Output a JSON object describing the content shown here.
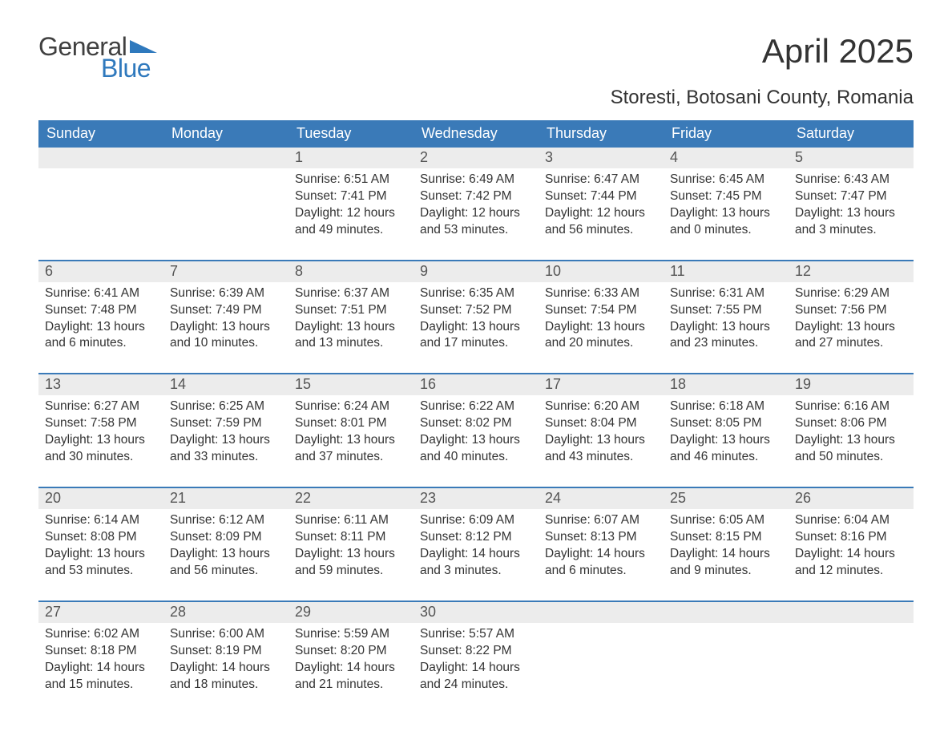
{
  "brand": {
    "general": "General",
    "blue": "Blue",
    "tri_color": "#2f79bd",
    "text_gray": "#404040"
  },
  "title": "April 2025",
  "location": "Storesti, Botosani County, Romania",
  "colors": {
    "header_bg": "#3a7ab8",
    "header_text": "#ffffff",
    "daynum_bg": "#ececec",
    "daynum_text": "#555555",
    "body_text": "#333333",
    "week_border": "#3a7ab8",
    "page_bg": "#ffffff"
  },
  "typography": {
    "title_fontsize": 42,
    "location_fontsize": 24,
    "header_fontsize": 18,
    "body_fontsize": 15.5
  },
  "weekdays": [
    "Sunday",
    "Monday",
    "Tuesday",
    "Wednesday",
    "Thursday",
    "Friday",
    "Saturday"
  ],
  "weeks": [
    [
      {
        "n": "",
        "sr": "",
        "ss": "",
        "dl": ""
      },
      {
        "n": "",
        "sr": "",
        "ss": "",
        "dl": ""
      },
      {
        "n": "1",
        "sr": "Sunrise: 6:51 AM",
        "ss": "Sunset: 7:41 PM",
        "dl": "Daylight: 12 hours and 49 minutes."
      },
      {
        "n": "2",
        "sr": "Sunrise: 6:49 AM",
        "ss": "Sunset: 7:42 PM",
        "dl": "Daylight: 12 hours and 53 minutes."
      },
      {
        "n": "3",
        "sr": "Sunrise: 6:47 AM",
        "ss": "Sunset: 7:44 PM",
        "dl": "Daylight: 12 hours and 56 minutes."
      },
      {
        "n": "4",
        "sr": "Sunrise: 6:45 AM",
        "ss": "Sunset: 7:45 PM",
        "dl": "Daylight: 13 hours and 0 minutes."
      },
      {
        "n": "5",
        "sr": "Sunrise: 6:43 AM",
        "ss": "Sunset: 7:47 PM",
        "dl": "Daylight: 13 hours and 3 minutes."
      }
    ],
    [
      {
        "n": "6",
        "sr": "Sunrise: 6:41 AM",
        "ss": "Sunset: 7:48 PM",
        "dl": "Daylight: 13 hours and 6 minutes."
      },
      {
        "n": "7",
        "sr": "Sunrise: 6:39 AM",
        "ss": "Sunset: 7:49 PM",
        "dl": "Daylight: 13 hours and 10 minutes."
      },
      {
        "n": "8",
        "sr": "Sunrise: 6:37 AM",
        "ss": "Sunset: 7:51 PM",
        "dl": "Daylight: 13 hours and 13 minutes."
      },
      {
        "n": "9",
        "sr": "Sunrise: 6:35 AM",
        "ss": "Sunset: 7:52 PM",
        "dl": "Daylight: 13 hours and 17 minutes."
      },
      {
        "n": "10",
        "sr": "Sunrise: 6:33 AM",
        "ss": "Sunset: 7:54 PM",
        "dl": "Daylight: 13 hours and 20 minutes."
      },
      {
        "n": "11",
        "sr": "Sunrise: 6:31 AM",
        "ss": "Sunset: 7:55 PM",
        "dl": "Daylight: 13 hours and 23 minutes."
      },
      {
        "n": "12",
        "sr": "Sunrise: 6:29 AM",
        "ss": "Sunset: 7:56 PM",
        "dl": "Daylight: 13 hours and 27 minutes."
      }
    ],
    [
      {
        "n": "13",
        "sr": "Sunrise: 6:27 AM",
        "ss": "Sunset: 7:58 PM",
        "dl": "Daylight: 13 hours and 30 minutes."
      },
      {
        "n": "14",
        "sr": "Sunrise: 6:25 AM",
        "ss": "Sunset: 7:59 PM",
        "dl": "Daylight: 13 hours and 33 minutes."
      },
      {
        "n": "15",
        "sr": "Sunrise: 6:24 AM",
        "ss": "Sunset: 8:01 PM",
        "dl": "Daylight: 13 hours and 37 minutes."
      },
      {
        "n": "16",
        "sr": "Sunrise: 6:22 AM",
        "ss": "Sunset: 8:02 PM",
        "dl": "Daylight: 13 hours and 40 minutes."
      },
      {
        "n": "17",
        "sr": "Sunrise: 6:20 AM",
        "ss": "Sunset: 8:04 PM",
        "dl": "Daylight: 13 hours and 43 minutes."
      },
      {
        "n": "18",
        "sr": "Sunrise: 6:18 AM",
        "ss": "Sunset: 8:05 PM",
        "dl": "Daylight: 13 hours and 46 minutes."
      },
      {
        "n": "19",
        "sr": "Sunrise: 6:16 AM",
        "ss": "Sunset: 8:06 PM",
        "dl": "Daylight: 13 hours and 50 minutes."
      }
    ],
    [
      {
        "n": "20",
        "sr": "Sunrise: 6:14 AM",
        "ss": "Sunset: 8:08 PM",
        "dl": "Daylight: 13 hours and 53 minutes."
      },
      {
        "n": "21",
        "sr": "Sunrise: 6:12 AM",
        "ss": "Sunset: 8:09 PM",
        "dl": "Daylight: 13 hours and 56 minutes."
      },
      {
        "n": "22",
        "sr": "Sunrise: 6:11 AM",
        "ss": "Sunset: 8:11 PM",
        "dl": "Daylight: 13 hours and 59 minutes."
      },
      {
        "n": "23",
        "sr": "Sunrise: 6:09 AM",
        "ss": "Sunset: 8:12 PM",
        "dl": "Daylight: 14 hours and 3 minutes."
      },
      {
        "n": "24",
        "sr": "Sunrise: 6:07 AM",
        "ss": "Sunset: 8:13 PM",
        "dl": "Daylight: 14 hours and 6 minutes."
      },
      {
        "n": "25",
        "sr": "Sunrise: 6:05 AM",
        "ss": "Sunset: 8:15 PM",
        "dl": "Daylight: 14 hours and 9 minutes."
      },
      {
        "n": "26",
        "sr": "Sunrise: 6:04 AM",
        "ss": "Sunset: 8:16 PM",
        "dl": "Daylight: 14 hours and 12 minutes."
      }
    ],
    [
      {
        "n": "27",
        "sr": "Sunrise: 6:02 AM",
        "ss": "Sunset: 8:18 PM",
        "dl": "Daylight: 14 hours and 15 minutes."
      },
      {
        "n": "28",
        "sr": "Sunrise: 6:00 AM",
        "ss": "Sunset: 8:19 PM",
        "dl": "Daylight: 14 hours and 18 minutes."
      },
      {
        "n": "29",
        "sr": "Sunrise: 5:59 AM",
        "ss": "Sunset: 8:20 PM",
        "dl": "Daylight: 14 hours and 21 minutes."
      },
      {
        "n": "30",
        "sr": "Sunrise: 5:57 AM",
        "ss": "Sunset: 8:22 PM",
        "dl": "Daylight: 14 hours and 24 minutes."
      },
      {
        "n": "",
        "sr": "",
        "ss": "",
        "dl": ""
      },
      {
        "n": "",
        "sr": "",
        "ss": "",
        "dl": ""
      },
      {
        "n": "",
        "sr": "",
        "ss": "",
        "dl": ""
      }
    ]
  ]
}
